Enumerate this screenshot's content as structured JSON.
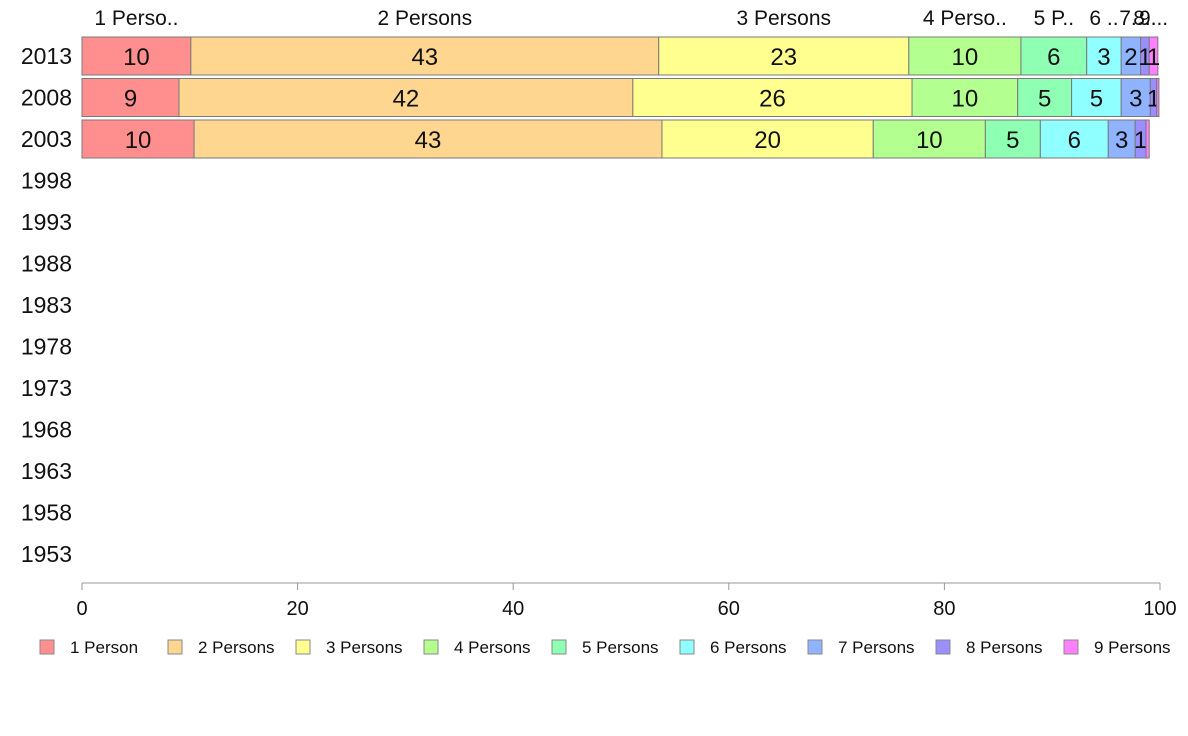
{
  "chart_data": {
    "type": "bar",
    "orientation": "horizontal",
    "stacked": true,
    "categories": [
      "2013",
      "2008",
      "2003",
      "1998",
      "1993",
      "1988",
      "1983",
      "1978",
      "1973",
      "1968",
      "1963",
      "1958",
      "1953"
    ],
    "series": [
      {
        "name": "1 Person",
        "color": "#ff8f8f",
        "values": [
          10.1,
          9.0,
          10.4,
          null,
          null,
          null,
          null,
          null,
          null,
          null,
          null,
          null,
          null
        ],
        "labels": [
          "10",
          "9",
          "10",
          "",
          "",
          "",
          "",
          "",
          "",
          "",
          "",
          "",
          ""
        ]
      },
      {
        "name": "2 Persons",
        "color": "#ffd690",
        "values": [
          43.4,
          42.1,
          43.4,
          null,
          null,
          null,
          null,
          null,
          null,
          null,
          null,
          null,
          null
        ],
        "labels": [
          "43",
          "42",
          "43",
          "",
          "",
          "",
          "",
          "",
          "",
          "",
          "",
          "",
          ""
        ]
      },
      {
        "name": "3 Persons",
        "color": "#ffff8f",
        "values": [
          23.2,
          25.9,
          19.6,
          null,
          null,
          null,
          null,
          null,
          null,
          null,
          null,
          null,
          null
        ],
        "labels": [
          "23",
          "26",
          "20",
          "",
          "",
          "",
          "",
          "",
          "",
          "",
          "",
          "",
          ""
        ]
      },
      {
        "name": "4 Persons",
        "color": "#b3ff8f",
        "values": [
          10.4,
          9.8,
          10.4,
          null,
          null,
          null,
          null,
          null,
          null,
          null,
          null,
          null,
          null
        ],
        "labels": [
          "10",
          "10",
          "10",
          "",
          "",
          "",
          "",
          "",
          "",
          "",
          "",
          "",
          ""
        ]
      },
      {
        "name": "5 Persons",
        "color": "#8fffb3",
        "values": [
          6.1,
          5.0,
          5.1,
          null,
          null,
          null,
          null,
          null,
          null,
          null,
          null,
          null,
          null
        ],
        "labels": [
          "6",
          "5",
          "5",
          "",
          "",
          "",
          "",
          "",
          "",
          "",
          "",
          "",
          ""
        ]
      },
      {
        "name": "6 Persons",
        "color": "#8fffff",
        "values": [
          3.2,
          4.6,
          6.3,
          null,
          null,
          null,
          null,
          null,
          null,
          null,
          null,
          null,
          null
        ],
        "labels": [
          "3",
          "5",
          "6",
          "",
          "",
          "",
          "",
          "",
          "",
          "",
          "",
          "",
          ""
        ]
      },
      {
        "name": "7 Persons",
        "color": "#8fb3ff",
        "values": [
          1.8,
          2.7,
          2.5,
          null,
          null,
          null,
          null,
          null,
          null,
          null,
          null,
          null,
          null
        ],
        "labels": [
          "2",
          "3",
          "3",
          "",
          "",
          "",
          "",
          "",
          "",
          "",
          "",
          "",
          ""
        ]
      },
      {
        "name": "8 Persons",
        "color": "#9a8fff",
        "values": [
          0.8,
          0.6,
          1.0,
          null,
          null,
          null,
          null,
          null,
          null,
          null,
          null,
          null,
          null
        ],
        "labels": [
          "1",
          "1",
          "1",
          "",
          "",
          "",
          "",
          "",
          "",
          "",
          "",
          "",
          ""
        ]
      },
      {
        "name": "9 Persons",
        "color": "#ff80ff",
        "values": [
          0.8,
          0.2,
          0.3,
          null,
          null,
          null,
          null,
          null,
          null,
          null,
          null,
          null,
          null
        ],
        "labels": [
          "1",
          "",
          "",
          "",
          "",
          "",
          "",
          "",
          "",
          "",
          "",
          "",
          ""
        ]
      }
    ],
    "top_labels": [
      "1 Perso..",
      "2 Persons",
      "3 Persons",
      "4 Perso..",
      "5 P..",
      "6 ..",
      "7..",
      "8..",
      "9..."
    ],
    "xlim": [
      0,
      100
    ],
    "xticks": [
      0,
      20,
      40,
      60,
      80,
      100
    ],
    "title": "",
    "xlabel": "",
    "ylabel": "",
    "grid": false,
    "legend_position": "bottom"
  }
}
